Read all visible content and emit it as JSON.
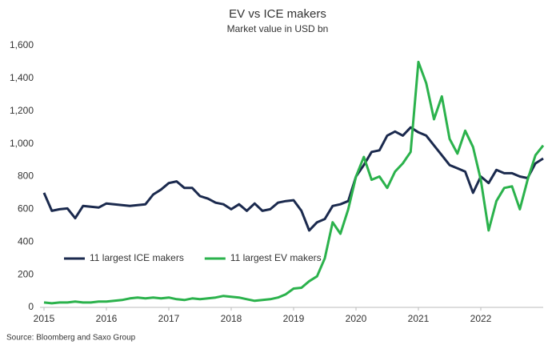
{
  "chart_data": {
    "type": "line",
    "title": "EV vs ICE makers",
    "subtitle": "Market value in USD bn",
    "source": "Source: Bloomberg and Saxo Group",
    "x": [
      2015,
      2015.125,
      2015.25,
      2015.375,
      2015.5,
      2015.625,
      2015.75,
      2015.875,
      2016,
      2016.125,
      2016.25,
      2016.375,
      2016.5,
      2016.625,
      2016.75,
      2016.875,
      2017,
      2017.125,
      2017.25,
      2017.375,
      2017.5,
      2017.625,
      2017.75,
      2017.875,
      2018,
      2018.125,
      2018.25,
      2018.375,
      2018.5,
      2018.625,
      2018.75,
      2018.875,
      2019,
      2019.125,
      2019.25,
      2019.375,
      2019.5,
      2019.625,
      2019.75,
      2019.875,
      2020,
      2020.125,
      2020.25,
      2020.375,
      2020.5,
      2020.625,
      2020.75,
      2020.875,
      2021,
      2021.125,
      2021.25,
      2021.375,
      2021.5,
      2021.625,
      2021.75,
      2021.875,
      2022,
      2022.125,
      2022.25,
      2022.375,
      2022.5,
      2022.625,
      2022.75,
      2022.875,
      2023
    ],
    "series": [
      {
        "name": "11 largest ICE makers",
        "color": "#1b2a4e",
        "values": [
          700,
          590,
          600,
          605,
          545,
          620,
          615,
          610,
          635,
          630,
          625,
          620,
          625,
          630,
          690,
          720,
          760,
          770,
          730,
          730,
          680,
          665,
          640,
          630,
          600,
          630,
          590,
          635,
          590,
          600,
          640,
          650,
          655,
          590,
          470,
          520,
          540,
          620,
          630,
          650,
          800,
          870,
          950,
          960,
          1050,
          1075,
          1050,
          1100,
          1070,
          1050,
          990,
          930,
          870,
          850,
          830,
          700,
          800,
          760,
          840,
          820,
          820,
          800,
          790,
          880,
          910
        ]
      },
      {
        "name": "11 largest EV makers",
        "color": "#2bb24c",
        "values": [
          30,
          25,
          30,
          30,
          35,
          30,
          30,
          35,
          35,
          40,
          45,
          55,
          60,
          55,
          60,
          55,
          60,
          50,
          45,
          55,
          50,
          55,
          60,
          70,
          65,
          60,
          50,
          40,
          45,
          50,
          60,
          80,
          115,
          120,
          160,
          190,
          300,
          520,
          450,
          600,
          800,
          920,
          780,
          800,
          730,
          830,
          880,
          950,
          1500,
          1370,
          1150,
          1290,
          1030,
          940,
          1080,
          980,
          780,
          470,
          650,
          730,
          740,
          600,
          780,
          930,
          990
        ]
      }
    ],
    "xlim": [
      2015,
      2023
    ],
    "xticks": [
      2015,
      2016,
      2017,
      2018,
      2019,
      2020,
      2021,
      2022
    ],
    "ylim": [
      0,
      1600
    ],
    "yticks": [
      0,
      200,
      400,
      600,
      800,
      {
        "value": 1000,
        "label": "1,000"
      },
      {
        "value": 1200,
        "label": "1,200"
      },
      {
        "value": 1400,
        "label": "1,400"
      },
      {
        "value": 1600,
        "label": "1,600"
      }
    ],
    "legend": "lower center"
  }
}
